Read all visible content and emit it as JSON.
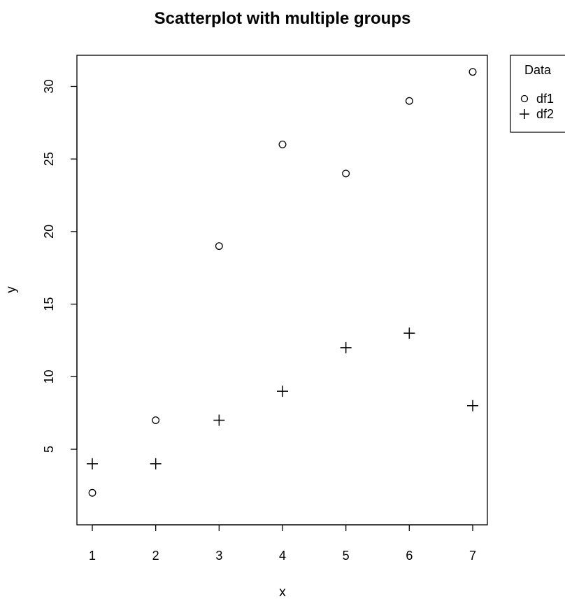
{
  "chart_data": {
    "type": "scatter",
    "title": "Scatterplot with multiple groups",
    "xlabel": "x",
    "ylabel": "y",
    "xlim": [
      1,
      7
    ],
    "ylim": [
      1,
      32
    ],
    "x_ticks": [
      1,
      2,
      3,
      4,
      5,
      6,
      7
    ],
    "y_ticks": [
      5,
      10,
      15,
      20,
      25,
      30
    ],
    "grid": false,
    "legend": {
      "title": "Data",
      "placement": "outside-top-right",
      "entries": [
        "df1",
        "df2"
      ]
    },
    "series": [
      {
        "name": "df1",
        "marker": "circle",
        "x": [
          1,
          2,
          3,
          4,
          5,
          6,
          7
        ],
        "y": [
          2,
          7,
          19,
          26,
          24,
          29,
          31
        ]
      },
      {
        "name": "df2",
        "marker": "plus",
        "x": [
          1,
          2,
          3,
          4,
          5,
          6,
          7
        ],
        "y": [
          4,
          4,
          7,
          9,
          12,
          13,
          8
        ]
      }
    ]
  }
}
